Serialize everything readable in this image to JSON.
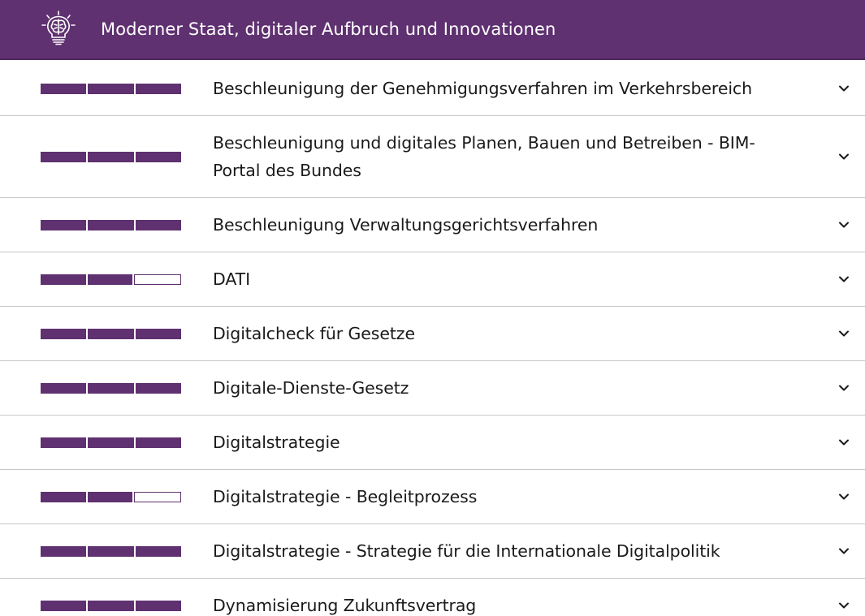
{
  "header": {
    "title": "Moderner Staat, digitaler Aufbruch und Innovationen",
    "icon": "lightbulb-brain-icon"
  },
  "colors": {
    "brand": "#5f3170",
    "divider": "#c8c8c8",
    "text": "#1a1a1a"
  },
  "items": [
    {
      "label": "Beschleunigung der Genehmigungsverfahren im Verkehrsbereich",
      "progress_filled": 3,
      "progress_total": 3
    },
    {
      "label": "Beschleunigung und digitales Planen, Bauen und Betreiben - BIM-Portal des Bundes",
      "progress_filled": 3,
      "progress_total": 3
    },
    {
      "label": "Beschleunigung Verwaltungsgerichtsverfahren",
      "progress_filled": 3,
      "progress_total": 3
    },
    {
      "label": "DATI",
      "progress_filled": 2,
      "progress_total": 3
    },
    {
      "label": "Digitalcheck für Gesetze",
      "progress_filled": 3,
      "progress_total": 3
    },
    {
      "label": "Digitale-Dienste-Gesetz",
      "progress_filled": 3,
      "progress_total": 3
    },
    {
      "label": "Digitalstrategie",
      "progress_filled": 3,
      "progress_total": 3
    },
    {
      "label": "Digitalstrategie - Begleitprozess",
      "progress_filled": 2,
      "progress_total": 3
    },
    {
      "label": "Digitalstrategie - Strategie für die Internationale Digitalpolitik",
      "progress_filled": 3,
      "progress_total": 3
    },
    {
      "label": "Dynamisierung Zukunftsvertrag",
      "progress_filled": 3,
      "progress_total": 3
    }
  ]
}
